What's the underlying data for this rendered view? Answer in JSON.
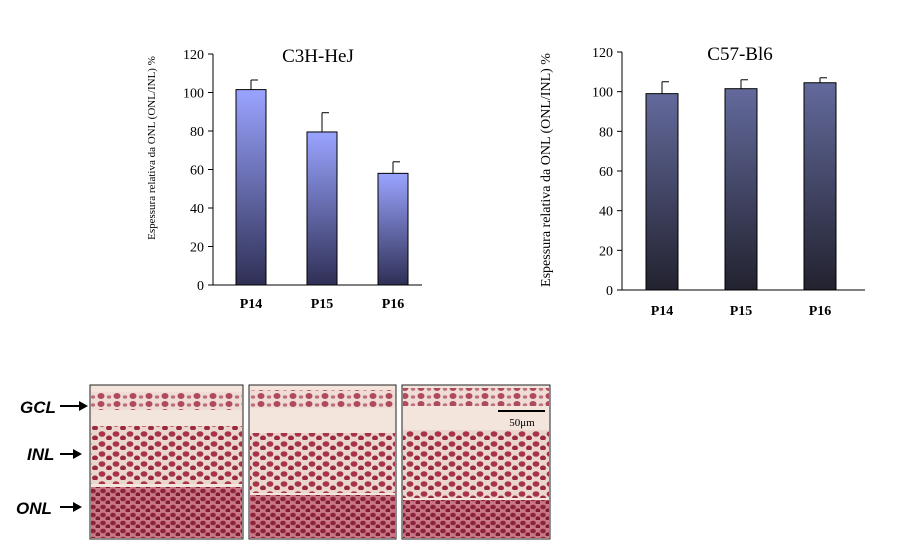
{
  "chart_data": [
    {
      "type": "bar",
      "title": "C3H-HeJ",
      "ylabel": "Espessura relativa da ONL (ONL/INL) %",
      "xlabel": "",
      "categories": [
        "P14",
        "P15",
        "P16"
      ],
      "values": [
        101.5,
        79.5,
        58
      ],
      "errors": [
        5,
        10,
        6
      ],
      "ylim": [
        0,
        120
      ],
      "yticks": [
        "0",
        "20",
        "40",
        "60",
        "80",
        "100",
        "120"
      ],
      "grid": false,
      "bar_gradient": {
        "top": "#9aa4ff",
        "bottom": "#2f2f55"
      }
    },
    {
      "type": "bar",
      "title": "C57-Bl6",
      "ylabel": "Espessura relativa da ONL (ONL/INL) %",
      "xlabel": "",
      "categories": [
        "P14",
        "P15",
        "P16"
      ],
      "values": [
        99,
        101.5,
        104.5
      ],
      "errors": [
        6,
        4.5,
        2.5
      ],
      "ylim": [
        0,
        120
      ],
      "yticks": [
        "0",
        "20",
        "40",
        "60",
        "80",
        "100",
        "120"
      ],
      "grid": false,
      "bar_gradient": {
        "top": "#636a9c",
        "bottom": "#22222f"
      }
    }
  ],
  "histology": {
    "labels": [
      "GCL",
      "INL",
      "ONL"
    ],
    "scale_bar_label": "50μm",
    "tissue_colors": {
      "background": "#f3e4dc",
      "nuclei": "#a8324a",
      "dense": "#8e2236"
    }
  }
}
